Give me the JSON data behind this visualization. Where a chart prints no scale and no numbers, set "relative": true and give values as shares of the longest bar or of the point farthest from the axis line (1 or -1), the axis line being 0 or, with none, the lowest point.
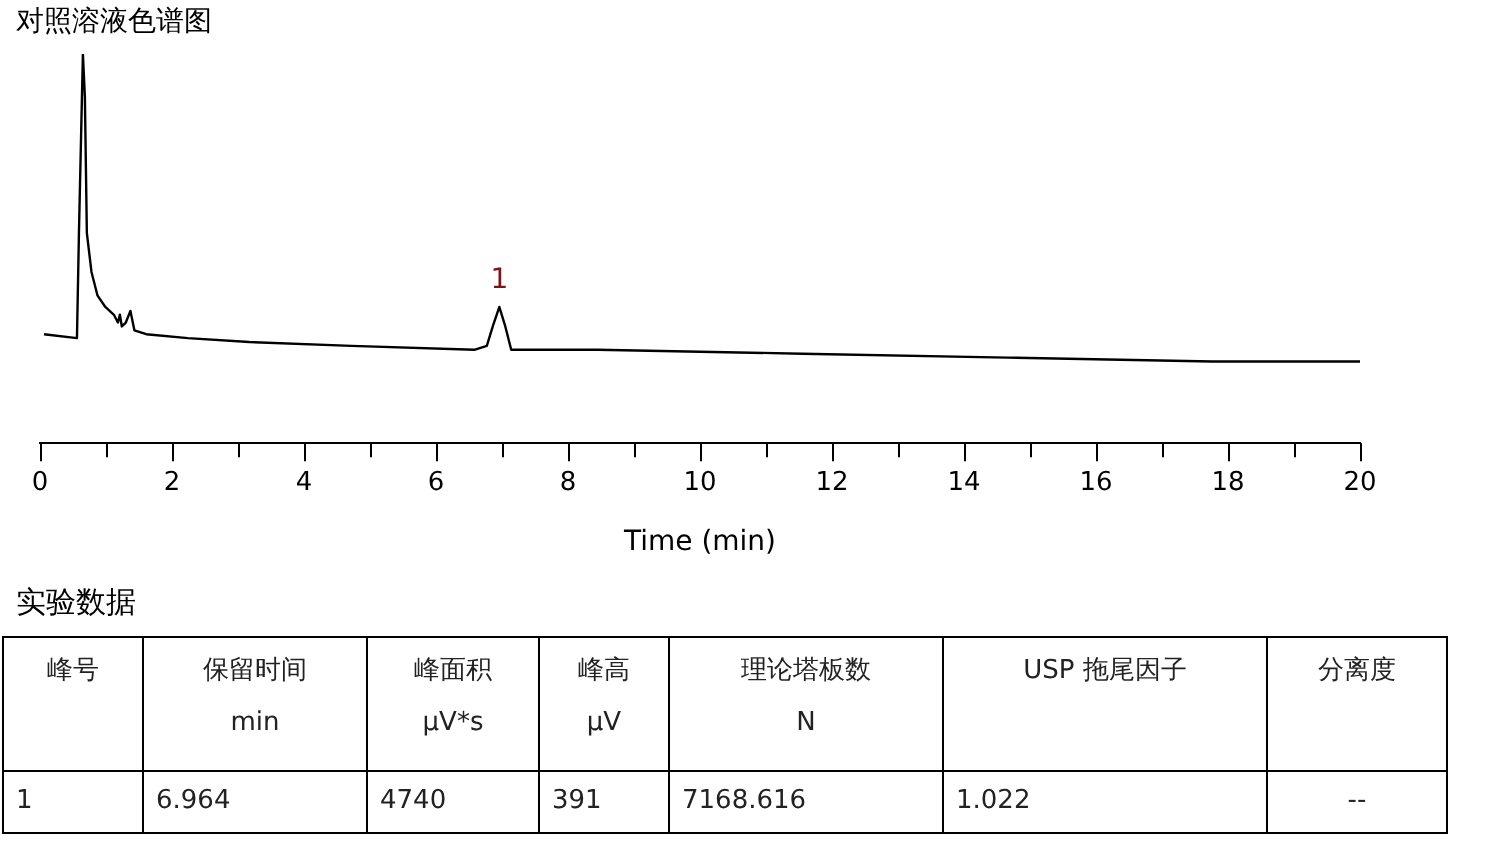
{
  "chart_data": {
    "type": "line",
    "title": "对照溶液色谱图",
    "xlabel": "Time (min)",
    "relative": true,
    "marker": "none",
    "line_style": "solid",
    "xlim": [
      0,
      20
    ],
    "xticks": [
      0,
      {
        "value": 1,
        "label": null
      },
      2,
      {
        "value": 3,
        "label": null
      },
      4,
      {
        "value": 5,
        "label": null
      },
      6,
      {
        "value": 7,
        "label": null
      },
      8,
      {
        "value": 9,
        "label": null
      },
      10,
      {
        "value": 11,
        "label": null
      },
      12,
      {
        "value": 13,
        "label": null
      },
      14,
      {
        "value": 15,
        "label": null
      },
      16,
      {
        "value": 17,
        "label": null
      },
      18,
      {
        "value": 19,
        "label": null
      },
      20
    ],
    "series": [
      {
        "color": "#000000",
        "x": [
          0.06,
          0.56,
          0.59,
          0.65,
          0.68,
          0.71,
          0.78,
          0.87,
          0.99,
          1.12,
          1.18,
          1.21,
          1.24,
          1.3,
          1.37,
          1.43,
          1.61,
          2.24,
          3.17,
          4.72,
          6.58,
          6.77,
          6.86,
          6.96,
          7.05,
          7.14,
          8.45,
          11.55,
          14.66,
          17.76,
          20
        ],
        "values": [
          0.28,
          0.27,
          0.54,
          1,
          0.89,
          0.54,
          0.44,
          0.38,
          0.35,
          0.33,
          0.31,
          0.33,
          0.3,
          0.31,
          0.34,
          0.29,
          0.28,
          0.27,
          0.26,
          0.25,
          0.24,
          0.25,
          0.3,
          0.35,
          0.3,
          0.24,
          0.24,
          0.23,
          0.22,
          0.21,
          0.21
        ]
      }
    ],
    "annotations": [
      {
        "text": "1",
        "x": 6.96,
        "y": 0.35
      },
      "实验数据",
      "峰号",
      "保留时间\nmin",
      "峰面积\nμV*s",
      "峰高\nμV",
      "理论塔板数\nN",
      "USP 拖尾因子",
      "分离度",
      "1",
      "6.964",
      "4740",
      "391",
      "7168.616",
      "1.022",
      "--"
    ]
  }
}
